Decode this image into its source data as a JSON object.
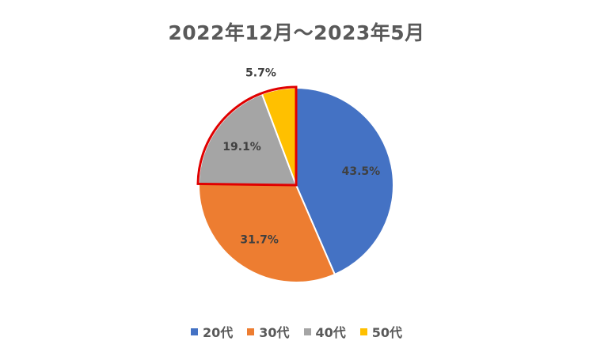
{
  "chart_data": {
    "type": "pie",
    "title": "2022年12月～2023年5月",
    "categories": [
      "20代",
      "30代",
      "40代",
      "50代"
    ],
    "values": [
      43.5,
      31.7,
      19.1,
      5.7
    ],
    "data_labels": [
      "43.5%",
      "31.7%",
      "19.1%",
      "5.7%"
    ],
    "colors": [
      "#4472C4",
      "#ED7D31",
      "#A5A5A5",
      "#FFC000"
    ],
    "start": "12 o'clock",
    "direction": "clockwise",
    "highlight": {
      "categories": [
        "40代",
        "50代"
      ],
      "color": "#E00000"
    },
    "legend_position": "bottom"
  }
}
